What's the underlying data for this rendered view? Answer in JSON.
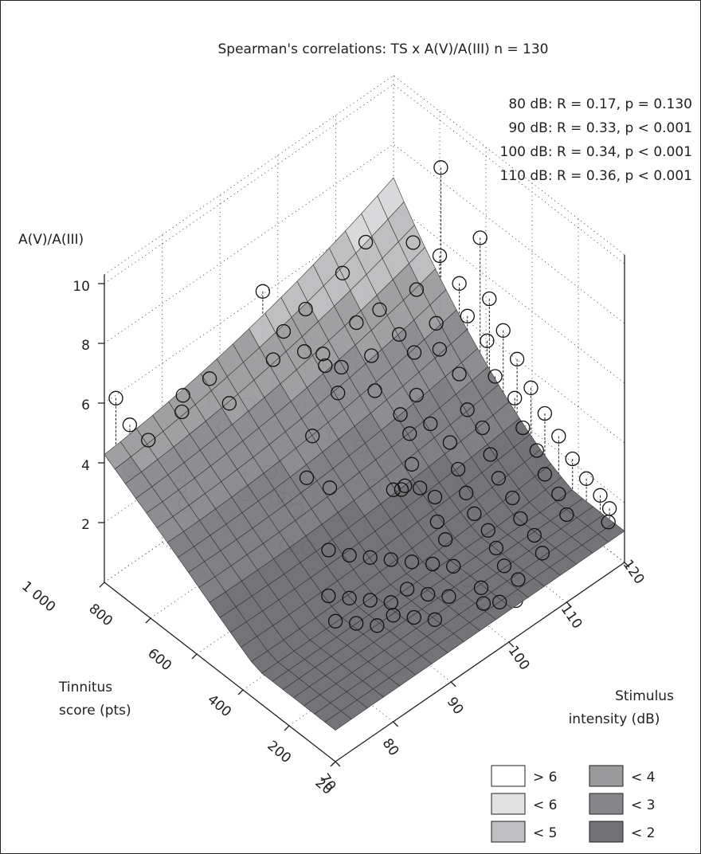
{
  "chart_data": {
    "type": "surface3d",
    "title": "Spearman's correlations: TS x A(V)/A(III)  n = 130",
    "stats": [
      "80 dB: R = 0.17, p = 0.130",
      "90 dB: R = 0.33, p < 0.001",
      "100 dB: R = 0.34, p < 0.001",
      "110 dB: R = 0.36, p < 0.001"
    ],
    "zlabel": "A(V)/A(III)",
    "xlabel_lines": [
      "Tinnitus",
      "score (pts)"
    ],
    "ylabel_lines": [
      "Stimulus",
      "intensity (dB)"
    ],
    "z_ticks": [
      "2",
      "4",
      "6",
      "8",
      "10"
    ],
    "x_ticks": [
      "20",
      "200",
      "400",
      "600",
      "800",
      "1 000"
    ],
    "y_ticks": [
      "70",
      "80",
      "90",
      "100",
      "110",
      "120"
    ],
    "xlim": [
      0,
      1000
    ],
    "ylim": [
      70,
      120
    ],
    "zlim": [
      0,
      10
    ],
    "legend_placement": "bottom-right",
    "legend": [
      {
        "label": "> 6",
        "color": "#ffffff"
      },
      {
        "label": "< 4",
        "color": "#9a9a9c"
      },
      {
        "label": "< 6",
        "color": "#e2e2e3"
      },
      {
        "label": "< 3",
        "color": "#86868a"
      },
      {
        "label": "< 5",
        "color": "#bfbfc1"
      },
      {
        "label": "< 2",
        "color": "#727276"
      }
    ],
    "points": [
      {
        "x": 1000,
        "y": 72,
        "z": 5.9
      },
      {
        "x": 990,
        "y": 74,
        "z": 4.8
      },
      {
        "x": 960,
        "y": 76,
        "z": 4.2
      },
      {
        "x": 960,
        "y": 73,
        "z": 3.6
      },
      {
        "x": 900,
        "y": 79,
        "z": 2.6
      },
      {
        "x": 900,
        "y": 80,
        "z": 1.9
      },
      {
        "x": 960,
        "y": 82,
        "z": 4.9
      },
      {
        "x": 940,
        "y": 81,
        "z": 4.6
      },
      {
        "x": 860,
        "y": 86,
        "z": 4.7
      },
      {
        "x": 920,
        "y": 85,
        "z": 5.3
      },
      {
        "x": 880,
        "y": 86,
        "z": 3.8
      },
      {
        "x": 790,
        "y": 86,
        "z": 2.1
      },
      {
        "x": 760,
        "y": 89,
        "z": 2.6
      },
      {
        "x": 720,
        "y": 90,
        "z": 1.8
      },
      {
        "x": 650,
        "y": 91,
        "z": 2.8
      },
      {
        "x": 600,
        "y": 93,
        "z": 2.5
      },
      {
        "x": 840,
        "y": 91,
        "z": 7.9
      },
      {
        "x": 820,
        "y": 92,
        "z": 5.6
      },
      {
        "x": 880,
        "y": 90,
        "z": 4.0
      },
      {
        "x": 700,
        "y": 94,
        "z": 3.5
      },
      {
        "x": 780,
        "y": 96,
        "z": 7.0
      },
      {
        "x": 780,
        "y": 99,
        "z": 5.1
      },
      {
        "x": 740,
        "y": 100,
        "z": 3.9
      },
      {
        "x": 700,
        "y": 98,
        "z": 3.0
      },
      {
        "x": 900,
        "y": 97,
        "z": 5.4
      },
      {
        "x": 860,
        "y": 99,
        "z": 4.7
      },
      {
        "x": 820,
        "y": 101,
        "z": 4.2
      },
      {
        "x": 640,
        "y": 100,
        "z": 2.7
      },
      {
        "x": 560,
        "y": 99,
        "z": 2.0
      },
      {
        "x": 500,
        "y": 100,
        "z": 2.1
      },
      {
        "x": 440,
        "y": 99,
        "z": 2.6
      },
      {
        "x": 400,
        "y": 98,
        "z": 3.1
      },
      {
        "x": 820,
        "y": 104,
        "z": 6.9
      },
      {
        "x": 800,
        "y": 103,
        "z": 4.0
      },
      {
        "x": 760,
        "y": 104,
        "z": 5.6
      },
      {
        "x": 720,
        "y": 105,
        "z": 4.6
      },
      {
        "x": 680,
        "y": 104,
        "z": 3.8
      },
      {
        "x": 620,
        "y": 106,
        "z": 3.1
      },
      {
        "x": 580,
        "y": 106,
        "z": 2.7
      },
      {
        "x": 520,
        "y": 104,
        "z": 2.3
      },
      {
        "x": 460,
        "y": 103,
        "z": 2.0
      },
      {
        "x": 420,
        "y": 104,
        "z": 1.8
      },
      {
        "x": 360,
        "y": 102,
        "z": 1.6
      },
      {
        "x": 300,
        "y": 101,
        "z": 1.5
      },
      {
        "x": 820,
        "y": 108,
        "z": 7.4
      },
      {
        "x": 760,
        "y": 108,
        "z": 5.5
      },
      {
        "x": 700,
        "y": 109,
        "z": 4.9
      },
      {
        "x": 660,
        "y": 110,
        "z": 4.4
      },
      {
        "x": 600,
        "y": 108,
        "z": 3.6
      },
      {
        "x": 540,
        "y": 108,
        "z": 3.0
      },
      {
        "x": 480,
        "y": 109,
        "z": 2.6
      },
      {
        "x": 420,
        "y": 108,
        "z": 2.2
      },
      {
        "x": 360,
        "y": 107,
        "z": 1.9
      },
      {
        "x": 300,
        "y": 106,
        "z": 1.7
      },
      {
        "x": 240,
        "y": 106,
        "z": 1.5
      },
      {
        "x": 180,
        "y": 105,
        "z": 1.4
      },
      {
        "x": 120,
        "y": 104,
        "z": 1.3
      },
      {
        "x": 740,
        "y": 113,
        "z": 7.2
      },
      {
        "x": 700,
        "y": 112,
        "z": 6.0
      },
      {
        "x": 640,
        "y": 113,
        "z": 5.1
      },
      {
        "x": 600,
        "y": 112,
        "z": 4.6
      },
      {
        "x": 540,
        "y": 113,
        "z": 4.0
      },
      {
        "x": 480,
        "y": 112,
        "z": 3.3
      },
      {
        "x": 440,
        "y": 113,
        "z": 2.8
      },
      {
        "x": 380,
        "y": 112,
        "z": 2.4
      },
      {
        "x": 320,
        "y": 111,
        "z": 2.1
      },
      {
        "x": 260,
        "y": 111,
        "z": 1.8
      },
      {
        "x": 200,
        "y": 110,
        "z": 1.6
      },
      {
        "x": 140,
        "y": 110,
        "z": 1.4
      },
      {
        "x": 80,
        "y": 109,
        "z": 1.3
      },
      {
        "x": 720,
        "y": 117,
        "z": 9.3
      },
      {
        "x": 700,
        "y": 116,
        "z": 6.6
      },
      {
        "x": 640,
        "y": 117,
        "z": 5.9
      },
      {
        "x": 580,
        "y": 116,
        "z": 5.3
      },
      {
        "x": 520,
        "y": 117,
        "z": 4.7
      },
      {
        "x": 460,
        "y": 116,
        "z": 4.0
      },
      {
        "x": 400,
        "y": 117,
        "z": 3.5
      },
      {
        "x": 340,
        "y": 116,
        "z": 3.0
      },
      {
        "x": 280,
        "y": 116,
        "z": 2.6
      },
      {
        "x": 220,
        "y": 115,
        "z": 2.3
      },
      {
        "x": 160,
        "y": 115,
        "z": 2.0
      },
      {
        "x": 100,
        "y": 114,
        "z": 1.8
      },
      {
        "x": 600,
        "y": 119,
        "z": 7.4
      },
      {
        "x": 560,
        "y": 119,
        "z": 5.6
      },
      {
        "x": 500,
        "y": 119,
        "z": 4.9
      },
      {
        "x": 440,
        "y": 119,
        "z": 4.3
      },
      {
        "x": 380,
        "y": 119,
        "z": 3.7
      },
      {
        "x": 320,
        "y": 119,
        "z": 3.2
      },
      {
        "x": 260,
        "y": 119,
        "z": 2.8
      },
      {
        "x": 200,
        "y": 119,
        "z": 2.4
      },
      {
        "x": 140,
        "y": 119,
        "z": 2.1
      },
      {
        "x": 80,
        "y": 119,
        "z": 1.9
      },
      {
        "x": 40,
        "y": 119,
        "z": 1.7
      },
      {
        "x": 20,
        "y": 118,
        "z": 1.5
      },
      {
        "x": 300,
        "y": 82,
        "z": 1.3
      },
      {
        "x": 260,
        "y": 84,
        "z": 1.2
      },
      {
        "x": 220,
        "y": 86,
        "z": 1.1
      },
      {
        "x": 200,
        "y": 88,
        "z": 1.3
      },
      {
        "x": 160,
        "y": 90,
        "z": 1.2
      },
      {
        "x": 120,
        "y": 92,
        "z": 1.1
      },
      {
        "x": 380,
        "y": 84,
        "z": 1.4
      },
      {
        "x": 340,
        "y": 86,
        "z": 1.3
      },
      {
        "x": 300,
        "y": 88,
        "z": 1.2
      },
      {
        "x": 260,
        "y": 90,
        "z": 1.1
      },
      {
        "x": 240,
        "y": 92,
        "z": 1.4
      },
      {
        "x": 200,
        "y": 94,
        "z": 1.2
      },
      {
        "x": 160,
        "y": 96,
        "z": 1.1
      },
      {
        "x": 100,
        "y": 96,
        "z": 1.0
      },
      {
        "x": 60,
        "y": 98,
        "z": 1.2
      },
      {
        "x": 40,
        "y": 100,
        "z": 1.1
      },
      {
        "x": 20,
        "y": 102,
        "z": 1.0
      },
      {
        "x": 480,
        "y": 88,
        "z": 1.8
      },
      {
        "x": 440,
        "y": 90,
        "z": 1.6
      },
      {
        "x": 400,
        "y": 92,
        "z": 1.5
      },
      {
        "x": 360,
        "y": 94,
        "z": 1.4
      },
      {
        "x": 320,
        "y": 96,
        "z": 1.3
      },
      {
        "x": 280,
        "y": 98,
        "z": 1.2
      },
      {
        "x": 240,
        "y": 100,
        "z": 1.1
      },
      {
        "x": 180,
        "y": 100,
        "z": 1.0
      },
      {
        "x": 120,
        "y": 100,
        "z": 1.1
      },
      {
        "x": 60,
        "y": 104,
        "z": 1.2
      },
      {
        "x": 560,
        "y": 84,
        "z": 2.0
      },
      {
        "x": 520,
        "y": 86,
        "z": 1.9
      },
      {
        "x": 620,
        "y": 88,
        "z": 2.3
      },
      {
        "x": 680,
        "y": 87,
        "z": 2.5
      },
      {
        "x": 160,
        "y": 82,
        "z": 1.0
      }
    ]
  }
}
